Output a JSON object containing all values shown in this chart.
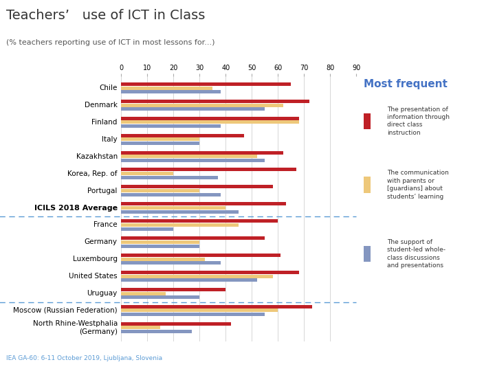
{
  "title": "Teachers’   use of ICT in Class",
  "subtitle": "(% teachers reporting use of ICT in most lessons for...)",
  "footnote": "IEA GA-60: 6-11 October 2019, Ljubljana, Slovenia",
  "categories": [
    "Chile",
    "Denmark",
    "Finland",
    "Italy",
    "Kazakhstan",
    "Korea, Rep. of",
    "Portugal",
    "ICILS 2018 Average",
    "France",
    "Germany",
    "Luxembourg",
    "United States",
    "Uruguay",
    "Moscow (Russian Federation)",
    "North Rhine-Westphalia\n(Germany)"
  ],
  "red_values": [
    65,
    72,
    68,
    47,
    62,
    67,
    58,
    63,
    60,
    55,
    61,
    68,
    40,
    73,
    42
  ],
  "yellow_values": [
    35,
    62,
    68,
    30,
    52,
    20,
    30,
    40,
    45,
    30,
    32,
    58,
    17,
    60,
    15
  ],
  "blue_values": [
    38,
    55,
    38,
    30,
    55,
    37,
    38,
    45,
    20,
    30,
    38,
    52,
    30,
    55,
    27
  ],
  "color_red": "#BF2026",
  "color_yellow": "#EEC87A",
  "color_blue": "#8496C0",
  "bg_color": "#FFFFFF",
  "title_color": "#333333",
  "subtitle_color": "#555555",
  "legend_title_color": "#4472C4",
  "footnote_color": "#5B9BD5",
  "xmax": 90,
  "xticks": [
    0,
    10,
    20,
    30,
    40,
    50,
    60,
    70,
    80,
    90
  ],
  "divider_after_idx": [
    7,
    12
  ],
  "bold_index": 7,
  "legend_title": "Most frequent",
  "legend_items": [
    "The presentation of\ninformation through\ndirect class\ninstruction",
    "The communication\nwith parents or\n[guardians] about\nstudents’ learning",
    "The support of\nstudent-led whole-\nclass discussions\nand presentations"
  ]
}
